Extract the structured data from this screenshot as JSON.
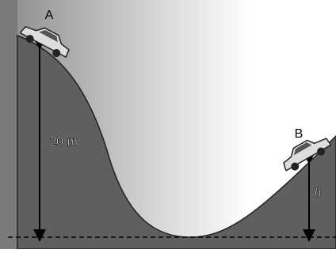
{
  "points": [
    {
      "label": "A"
    },
    {
      "label": "B"
    }
  ],
  "heights": [
    {
      "label": "20 m"
    },
    {
      "label": "h"
    }
  ]
}
